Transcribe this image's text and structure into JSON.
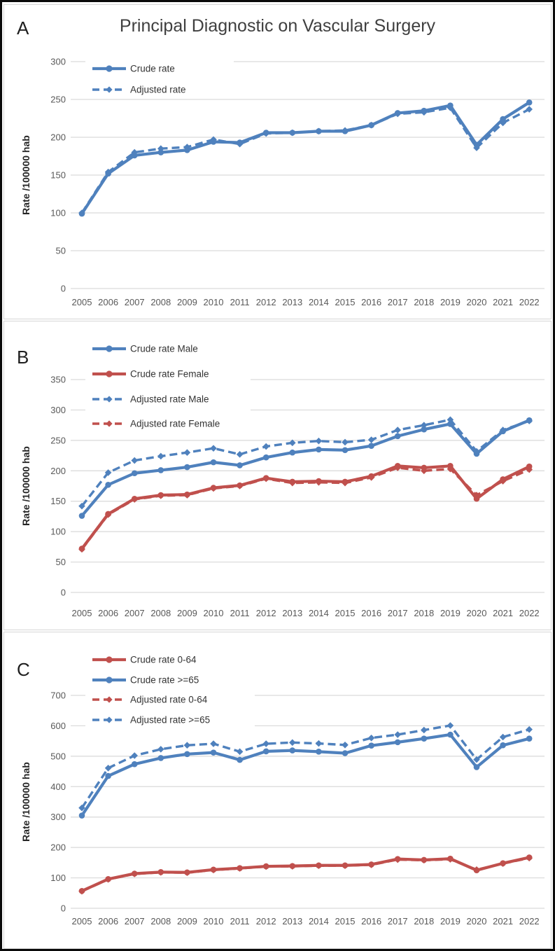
{
  "title": "Principal Diagnostic on Vascular Surgery",
  "y_axis_title": "Rate /100000 hab",
  "colors": {
    "blue": "#4F81BD",
    "red": "#C0504D",
    "gridline": "#D9D9D9",
    "tick_text": "#595959",
    "title_text": "#3F3F3F",
    "panel_letter": "#1F1F1F",
    "axis_title_text": "#262626",
    "legend_text": "#333333"
  },
  "chart_data": [
    {
      "panel_label": "A",
      "type": "line",
      "title": "Principal Diagnostic on Vascular Surgery",
      "x": [
        "2005",
        "2006",
        "2007",
        "2008",
        "2009",
        "2010",
        "2011",
        "2012",
        "2013",
        "2014",
        "2015",
        "2016",
        "2017",
        "2018",
        "2019",
        "2020",
        "2021",
        "2022"
      ],
      "xlabel": "",
      "ylabel": "Rate /100000 hab",
      "ylim": [
        0,
        300
      ],
      "ytick_step": 50,
      "grid": true,
      "legend_position": "top-left",
      "series": [
        {
          "name": "Crude rate",
          "color": "#4F81BD",
          "line_style": "solid",
          "marker": "circle",
          "values": [
            99,
            152,
            176,
            180,
            183,
            194,
            193,
            206,
            206,
            208,
            208,
            216,
            232,
            235,
            242,
            190,
            224,
            246
          ]
        },
        {
          "name": "Adjusted rate",
          "color": "#4F81BD",
          "line_style": "dashed",
          "marker": "diamond",
          "values": [
            100,
            154,
            180,
            185,
            187,
            197,
            191,
            205,
            206,
            208,
            209,
            216,
            231,
            233,
            239,
            186,
            219,
            237
          ]
        }
      ]
    },
    {
      "panel_label": "B",
      "type": "line",
      "title": "",
      "x": [
        "2005",
        "2006",
        "2007",
        "2008",
        "2009",
        "2010",
        "2011",
        "2012",
        "2013",
        "2014",
        "2015",
        "2016",
        "2017",
        "2018",
        "2019",
        "2020",
        "2021",
        "2022"
      ],
      "xlabel": "",
      "ylabel": "Rate /100000 hab",
      "ylim": [
        0,
        350
      ],
      "ytick_step": 50,
      "grid": true,
      "legend_position": "top-left",
      "series": [
        {
          "name": "Crude rate Male",
          "color": "#4F81BD",
          "line_style": "solid",
          "marker": "circle",
          "values": [
            126,
            177,
            196,
            201,
            206,
            214,
            209,
            222,
            230,
            235,
            234,
            241,
            257,
            268,
            277,
            228,
            265,
            283
          ]
        },
        {
          "name": "Crude rate Female",
          "color": "#C0504D",
          "line_style": "solid",
          "marker": "circle",
          "values": [
            72,
            129,
            154,
            160,
            161,
            172,
            176,
            188,
            182,
            183,
            182,
            191,
            208,
            205,
            208,
            154,
            186,
            207
          ]
        },
        {
          "name": "Adjusted rate Male",
          "color": "#4F81BD",
          "line_style": "dashed",
          "marker": "diamond",
          "values": [
            142,
            197,
            217,
            224,
            230,
            237,
            227,
            240,
            246,
            249,
            247,
            251,
            267,
            275,
            284,
            232,
            267,
            282
          ]
        },
        {
          "name": "Adjusted rate Female",
          "color": "#C0504D",
          "line_style": "dashed",
          "marker": "diamond",
          "values": [
            71,
            128,
            153,
            159,
            160,
            171,
            175,
            187,
            180,
            181,
            180,
            189,
            205,
            200,
            203,
            160,
            183,
            202
          ]
        }
      ]
    },
    {
      "panel_label": "C",
      "type": "line",
      "title": "",
      "x": [
        "2005",
        "2006",
        "2007",
        "2008",
        "2009",
        "2010",
        "2011",
        "2012",
        "2013",
        "2014",
        "2015",
        "2016",
        "2017",
        "2018",
        "2019",
        "2020",
        "2021",
        "2022"
      ],
      "xlabel": "",
      "ylabel": "Rate /100000 hab",
      "ylim": [
        0,
        700
      ],
      "ytick_step": 100,
      "grid": true,
      "legend_position": "top-left",
      "series": [
        {
          "name": "Crude rate 0-64",
          "color": "#C0504D",
          "line_style": "solid",
          "marker": "circle",
          "values": [
            57,
            96,
            114,
            119,
            118,
            127,
            132,
            138,
            139,
            141,
            141,
            144,
            162,
            159,
            163,
            125,
            148,
            167
          ]
        },
        {
          "name": "Crude rate >=65",
          "color": "#4F81BD",
          "line_style": "solid",
          "marker": "circle",
          "values": [
            305,
            435,
            474,
            494,
            507,
            512,
            488,
            516,
            519,
            515,
            510,
            535,
            546,
            558,
            571,
            464,
            536,
            558
          ]
        },
        {
          "name": "Adjusted rate 0-64",
          "color": "#C0504D",
          "line_style": "dashed",
          "marker": "diamond",
          "values": [
            56,
            95,
            113,
            118,
            117,
            126,
            131,
            137,
            138,
            140,
            140,
            143,
            160,
            158,
            161,
            127,
            147,
            165
          ]
        },
        {
          "name": "Adjusted rate >=65",
          "color": "#4F81BD",
          "line_style": "dashed",
          "marker": "diamond",
          "values": [
            330,
            461,
            502,
            523,
            536,
            541,
            515,
            541,
            545,
            542,
            537,
            560,
            571,
            586,
            601,
            489,
            563,
            588
          ]
        }
      ]
    }
  ]
}
